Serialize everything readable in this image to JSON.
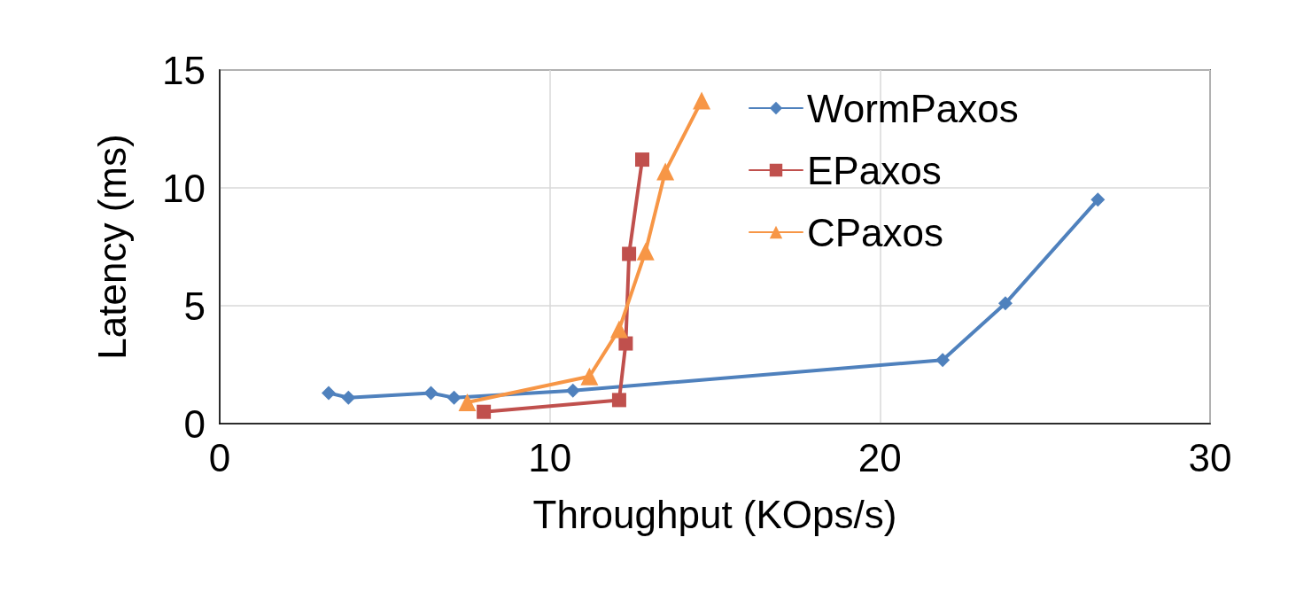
{
  "chart_data": {
    "type": "line",
    "xlabel": "Throughput (KOps/s)",
    "ylabel": "Latency (ms)",
    "xlim": [
      0,
      30
    ],
    "xticks": [
      0,
      10,
      20,
      30
    ],
    "ylim": [
      0,
      15
    ],
    "yticks": [
      0,
      5,
      10,
      15
    ],
    "grid": true,
    "legend": "top right",
    "line_style": "solid",
    "series": [
      {
        "name": "WormPaxos",
        "color": "#4f81bd",
        "marker": "diamond",
        "x": [
          3.3,
          3.9,
          6.4,
          7.1,
          10.7,
          21.9,
          23.8,
          26.6
        ],
        "values": [
          1.3,
          1.1,
          1.3,
          1.1,
          1.4,
          2.7,
          5.1,
          9.5
        ]
      },
      {
        "name": "EPaxos",
        "color": "#c0504d",
        "marker": "square",
        "x": [
          8.0,
          12.1,
          12.3,
          12.4,
          12.8
        ],
        "values": [
          0.5,
          1.0,
          3.4,
          7.2,
          11.2
        ]
      },
      {
        "name": "CPaxos",
        "color": "#f79646",
        "marker": "triangle",
        "x": [
          7.5,
          11.2,
          12.1,
          12.9,
          13.5,
          14.6
        ],
        "values": [
          0.9,
          2.0,
          4.0,
          7.3,
          10.7,
          13.7
        ]
      }
    ]
  }
}
